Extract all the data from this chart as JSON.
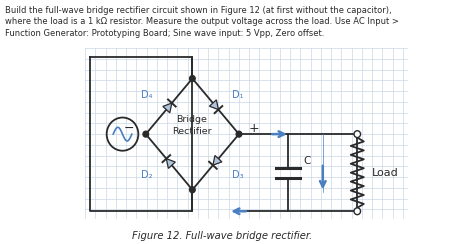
{
  "text_lines": [
    "Build the full-wave bridge rectifier circuit shown in Figure 12 (at first without the capacitor),",
    "where the load is a 1 kΩ resistor. Measure the output voltage across the load. Use AC Input >",
    "Function Generator: Prototyping Board; Sine wave input: 5 Vpp, Zero offset."
  ],
  "caption": "Figure 12. Full-wave bridge rectifier.",
  "bg_color": "#ffffff",
  "grid_color": "#c8d8e8",
  "line_color": "#2a2a2a",
  "blue_color": "#4a7fc1",
  "diode_fill": "#b0c4de"
}
